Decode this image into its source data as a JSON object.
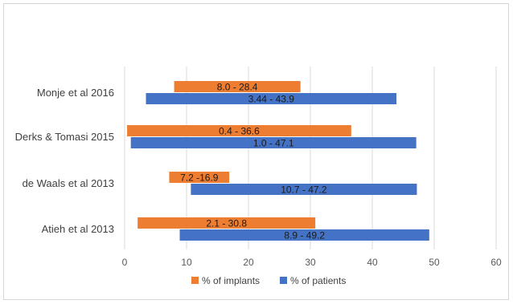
{
  "chart_data": {
    "type": "bar",
    "orientation": "horizontal",
    "bar_style": "floating-range",
    "categories": [
      "Monje et al 2016",
      "Derks & Tomasi 2015",
      "de Waals et al 2013",
      "Atieh et al 2013"
    ],
    "series": [
      {
        "name": "% of implants",
        "color": "#ED7D31",
        "ranges": [
          [
            8.0,
            28.4
          ],
          [
            0.4,
            36.6
          ],
          [
            7.2,
            16.9
          ],
          [
            2.1,
            30.8
          ]
        ],
        "labels": [
          "8.0 - 28.4",
          "0.4 - 36.6",
          "7.2 -16.9",
          "2.1 - 30.8"
        ]
      },
      {
        "name": "% of patients",
        "color": "#4472C4",
        "ranges": [
          [
            3.44,
            43.9
          ],
          [
            1.0,
            47.1
          ],
          [
            10.7,
            47.2
          ],
          [
            8.9,
            49.2
          ]
        ],
        "labels": [
          "3.44 - 43.9",
          "1.0 - 47.1",
          "10.7 - 47.2",
          "8.9 - 49.2"
        ]
      }
    ],
    "xlim": [
      0,
      60
    ],
    "xticks": [
      "0",
      "10",
      "20",
      "30",
      "40",
      "50",
      "60"
    ],
    "grid": "vertical",
    "legend_position": "bottom",
    "title": "",
    "xlabel": "",
    "ylabel": ""
  }
}
